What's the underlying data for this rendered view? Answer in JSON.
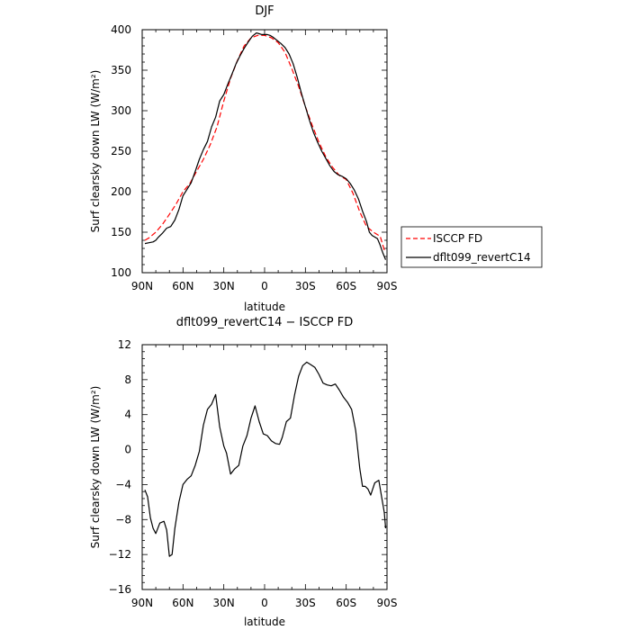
{
  "chart_data": [
    {
      "type": "line",
      "title": "DJF",
      "xlabel": "latitude",
      "ylabel": "Surf clearsky down LW (W/m²)",
      "xlim": [
        90,
        -90
      ],
      "ylim": [
        100,
        400
      ],
      "xticks": [
        90,
        60,
        30,
        0,
        -30,
        -60,
        -90
      ],
      "xtick_labels": [
        "90N",
        "60N",
        "30N",
        "0",
        "30S",
        "60S",
        "90S"
      ],
      "yticks": [
        100,
        150,
        200,
        250,
        300,
        350,
        400
      ],
      "ytick_labels": [
        "100",
        "150",
        "200",
        "250",
        "300",
        "350",
        "400"
      ],
      "grid": false,
      "legend_position": "outside-right",
      "series": [
        {
          "name": "ISCCP FD",
          "color": "#ff0000",
          "dash": "dashed",
          "x": [
            88,
            85,
            80,
            75,
            70,
            65,
            60,
            55,
            50,
            45,
            40,
            35,
            30,
            25,
            20,
            15,
            10,
            5,
            0,
            -5,
            -10,
            -15,
            -20,
            -25,
            -30,
            -35,
            -40,
            -45,
            -50,
            -55,
            -60,
            -65,
            -70,
            -75,
            -80,
            -85,
            -88
          ],
          "y": [
            140,
            143,
            150,
            160,
            172,
            185,
            200,
            210,
            225,
            240,
            258,
            280,
            312,
            340,
            362,
            380,
            390,
            393,
            393,
            390,
            384,
            372,
            352,
            330,
            305,
            282,
            261,
            243,
            230,
            220,
            215,
            198,
            175,
            157,
            150,
            145,
            128
          ]
        },
        {
          "name": "dflt099_revertC14",
          "color": "#000000",
          "dash": "solid",
          "x": [
            88,
            85,
            82,
            80,
            78,
            75,
            72,
            69,
            66,
            63,
            60,
            57,
            54,
            51,
            48,
            45,
            42,
            39,
            36,
            33,
            30,
            27,
            24,
            21,
            18,
            15,
            12,
            9,
            6,
            4,
            2,
            0,
            -2,
            -4,
            -6,
            -9,
            -12,
            -15,
            -18,
            -21,
            -24,
            -27,
            -30,
            -33,
            -36,
            -39,
            -42,
            -45,
            -48,
            -51,
            -54,
            -57,
            -60,
            -63,
            -66,
            -69,
            -72,
            -75,
            -77,
            -79,
            -81,
            -83,
            -85,
            -87,
            -89
          ],
          "y": [
            136,
            137,
            138,
            140,
            144,
            149,
            155,
            157,
            165,
            178,
            195,
            203,
            211,
            225,
            240,
            252,
            262,
            280,
            292,
            312,
            320,
            333,
            345,
            358,
            368,
            377,
            385,
            392,
            396,
            395,
            394,
            394,
            394,
            393,
            391,
            387,
            383,
            378,
            370,
            358,
            341,
            322,
            305,
            288,
            273,
            261,
            250,
            241,
            232,
            225,
            221,
            219,
            216,
            210,
            202,
            191,
            176,
            163,
            150,
            146,
            144,
            142,
            134,
            124,
            116
          ]
        }
      ]
    },
    {
      "type": "line",
      "title": "dflt099_revertC14 − ISCCP FD",
      "xlabel": "latitude",
      "ylabel": "Surf clearsky down LW (W/m²)",
      "xlim": [
        90,
        -90
      ],
      "ylim": [
        -16,
        12
      ],
      "xticks": [
        90,
        60,
        30,
        0,
        -30,
        -60,
        -90
      ],
      "xtick_labels": [
        "90N",
        "60N",
        "30N",
        "0",
        "30S",
        "60S",
        "90S"
      ],
      "yticks": [
        -16,
        -12,
        -8,
        -4,
        0,
        4,
        8,
        12
      ],
      "ytick_labels": [
        "−16",
        "−12",
        "−8",
        "−4",
        "0",
        "4",
        "8",
        "12"
      ],
      "grid": false,
      "series": [
        {
          "color": "#000000",
          "dash": "solid",
          "x": [
            88,
            86,
            84,
            82,
            80,
            77,
            74,
            72,
            70,
            68,
            66,
            63,
            60,
            57,
            54,
            51,
            48,
            45,
            42,
            39,
            36,
            33,
            30,
            28,
            25,
            22,
            19,
            16,
            13,
            10,
            7,
            4,
            1,
            -2,
            -5,
            -8,
            -11,
            -13,
            -16,
            -19,
            -22,
            -25,
            -28,
            -31,
            -34,
            -37,
            -40,
            -43,
            -46,
            -49,
            -52,
            -55,
            -58,
            -61,
            -64,
            -67,
            -70,
            -72,
            -74,
            -76,
            -78,
            -81,
            -84,
            -86,
            -88,
            -89
          ],
          "y": [
            -4.6,
            -5.4,
            -7.8,
            -9.0,
            -9.6,
            -8.4,
            -8.2,
            -9.2,
            -12.2,
            -12.0,
            -9.0,
            -6.0,
            -4.0,
            -3.4,
            -3.0,
            -1.8,
            -0.2,
            2.8,
            4.6,
            5.2,
            6.3,
            2.6,
            0.4,
            -0.4,
            -2.8,
            -2.2,
            -1.8,
            0.4,
            1.6,
            3.6,
            5.0,
            3.2,
            1.8,
            1.6,
            1.0,
            0.7,
            0.6,
            1.4,
            3.2,
            3.6,
            6.2,
            8.4,
            9.6,
            10.0,
            9.7,
            9.4,
            8.6,
            7.6,
            7.4,
            7.3,
            7.5,
            6.8,
            6.0,
            5.4,
            4.6,
            2.2,
            -2.2,
            -4.2,
            -4.2,
            -4.5,
            -5.2,
            -3.8,
            -3.5,
            -5.4,
            -7.2,
            -9.0
          ]
        }
      ]
    }
  ]
}
